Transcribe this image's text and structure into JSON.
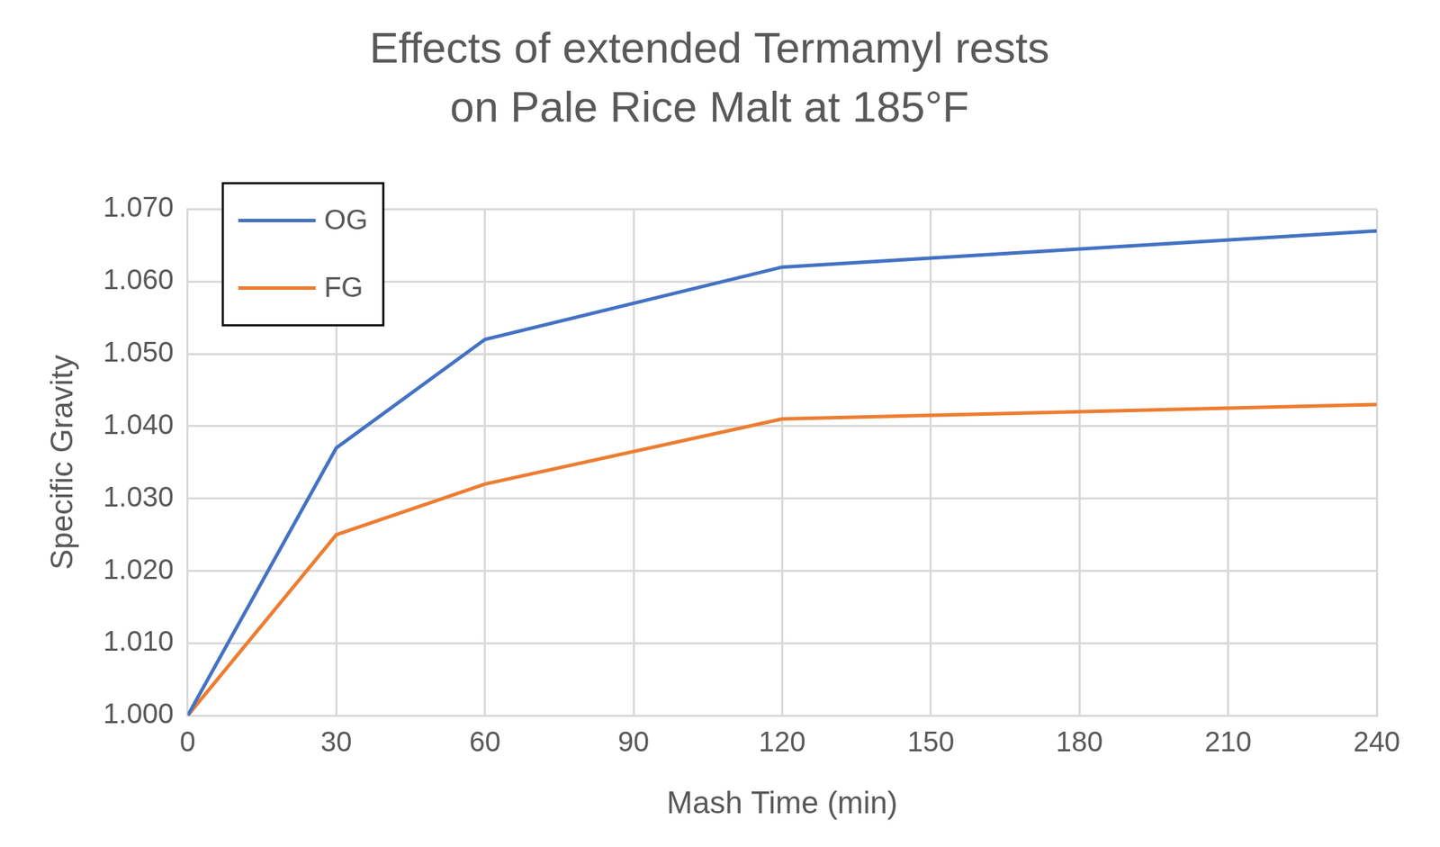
{
  "chart_data": {
    "type": "line",
    "title": [
      "Effects of extended Termamyl rests",
      "on Pale Rice Malt at 185°F"
    ],
    "x_label": "Mash Time (min)",
    "y_label": "Specific Gravity",
    "x": [
      0,
      30,
      60,
      120,
      240
    ],
    "series": [
      {
        "name": "OG",
        "color": "#4472c4",
        "values": [
          1.0,
          1.037,
          1.052,
          1.062,
          1.067
        ]
      },
      {
        "name": "FG",
        "color": "#ed7d31",
        "values": [
          1.0,
          1.025,
          1.032,
          1.041,
          1.043
        ]
      }
    ],
    "xlim": [
      0,
      240
    ],
    "xticks": [
      0,
      30,
      60,
      90,
      120,
      150,
      180,
      210,
      240
    ],
    "ylim": [
      1.0,
      1.07
    ],
    "yticks": [
      {
        "value": 1.0,
        "label": "1.000"
      },
      {
        "value": 1.01,
        "label": "1.010"
      },
      {
        "value": 1.02,
        "label": "1.020"
      },
      {
        "value": 1.03,
        "label": "1.030"
      },
      {
        "value": 1.04,
        "label": "1.040"
      },
      {
        "value": 1.05,
        "label": "1.050"
      },
      {
        "value": 1.06,
        "label": "1.060"
      },
      {
        "value": 1.07,
        "label": "1.070"
      }
    ],
    "grid": true,
    "legend": "upper left"
  }
}
